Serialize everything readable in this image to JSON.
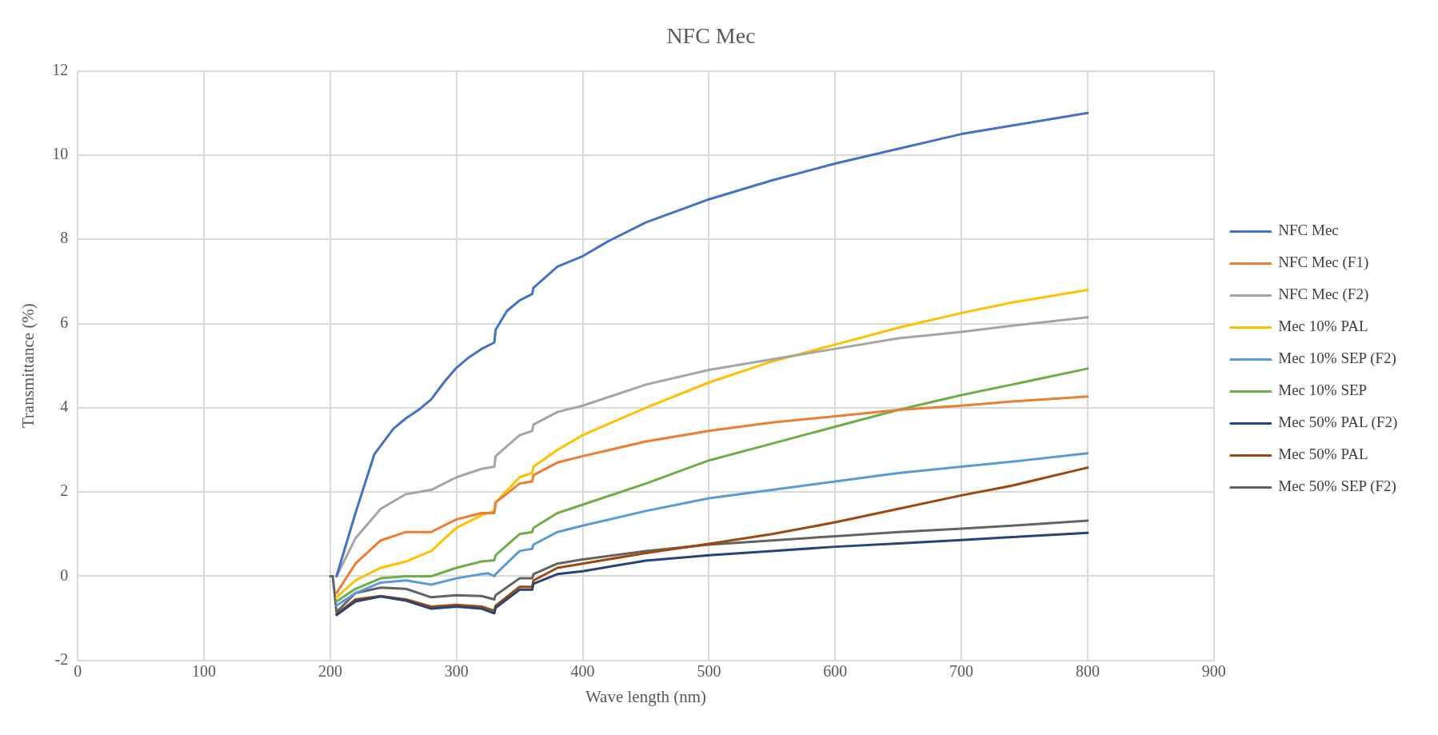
{
  "chart_data": {
    "type": "line",
    "title": "NFC Mec",
    "xlabel": "Wave length (nm)",
    "ylabel": "Transmittance (%)",
    "xlim": [
      0,
      900
    ],
    "xticks": [
      0,
      100,
      200,
      300,
      400,
      500,
      600,
      700,
      800,
      900
    ],
    "ylim": [
      -2,
      12
    ],
    "yticks": [
      -2,
      0,
      2,
      4,
      6,
      8,
      10,
      12
    ],
    "grid": true,
    "legend": "right",
    "marker": "none",
    "line_style": "solid",
    "series": [
      {
        "name": "NFC Mec",
        "color": "#4472c4",
        "x": [
          205,
          220,
          235,
          250,
          260,
          270,
          280,
          290,
          300,
          310,
          320,
          330,
          331,
          340,
          350,
          360,
          361,
          380,
          400,
          420,
          450,
          500,
          550,
          600,
          650,
          700,
          740,
          800
        ],
        "values": [
          0,
          1.5,
          2.9,
          3.5,
          3.75,
          3.95,
          4.2,
          4.6,
          4.95,
          5.2,
          5.4,
          5.55,
          5.85,
          6.3,
          6.55,
          6.7,
          6.85,
          7.35,
          7.6,
          7.95,
          8.4,
          8.95,
          9.4,
          9.8,
          10.15,
          10.5,
          10.7,
          11.0
        ]
      },
      {
        "name": "NFC Mec (F1)",
        "color": "#ed7d31",
        "x": [
          205,
          220,
          240,
          260,
          280,
          300,
          320,
          330,
          331,
          350,
          360,
          361,
          380,
          400,
          450,
          500,
          550,
          600,
          650,
          700,
          740,
          800
        ],
        "values": [
          -0.4,
          0.3,
          0.85,
          1.05,
          1.05,
          1.35,
          1.5,
          1.5,
          1.75,
          2.2,
          2.25,
          2.4,
          2.7,
          2.85,
          3.2,
          3.45,
          3.65,
          3.8,
          3.95,
          4.05,
          4.15,
          4.27
        ]
      },
      {
        "name": "NFC Mec (F2)",
        "color": "#a5a5a5",
        "x": [
          205,
          220,
          240,
          260,
          280,
          300,
          320,
          330,
          331,
          350,
          360,
          361,
          380,
          400,
          450,
          500,
          550,
          600,
          650,
          700,
          740,
          800
        ],
        "values": [
          0,
          0.9,
          1.6,
          1.95,
          2.05,
          2.35,
          2.55,
          2.6,
          2.85,
          3.35,
          3.45,
          3.6,
          3.9,
          4.05,
          4.55,
          4.9,
          5.15,
          5.4,
          5.65,
          5.8,
          5.95,
          6.15
        ]
      },
      {
        "name": "Mec 10% PAL",
        "color": "#ffc000",
        "x": [
          205,
          220,
          240,
          260,
          280,
          300,
          320,
          330,
          331,
          350,
          360,
          361,
          380,
          400,
          450,
          500,
          550,
          600,
          650,
          700,
          740,
          800
        ],
        "values": [
          -0.5,
          -0.1,
          0.2,
          0.35,
          0.6,
          1.15,
          1.45,
          1.55,
          1.75,
          2.35,
          2.45,
          2.6,
          3.0,
          3.35,
          4.0,
          4.6,
          5.1,
          5.5,
          5.9,
          6.25,
          6.5,
          6.8
        ]
      },
      {
        "name": "Mec 10% SEP (F2)",
        "color": "#5b9bd5",
        "x": [
          205,
          220,
          240,
          260,
          280,
          300,
          320,
          325,
          330,
          331,
          350,
          360,
          361,
          380,
          400,
          450,
          500,
          550,
          600,
          650,
          700,
          740,
          800
        ],
        "values": [
          -0.7,
          -0.4,
          -0.15,
          -0.1,
          -0.2,
          -0.05,
          0.05,
          0.07,
          0,
          0.05,
          0.6,
          0.65,
          0.75,
          1.05,
          1.2,
          1.55,
          1.85,
          2.05,
          2.25,
          2.45,
          2.6,
          2.72,
          2.92
        ]
      },
      {
        "name": "Mec 10% SEP",
        "color": "#70ad47",
        "x": [
          205,
          220,
          240,
          260,
          280,
          300,
          320,
          330,
          331,
          350,
          360,
          361,
          380,
          400,
          450,
          500,
          550,
          600,
          650,
          700,
          740,
          800
        ],
        "values": [
          -0.6,
          -0.3,
          -0.05,
          0,
          0,
          0.2,
          0.35,
          0.38,
          0.5,
          1.0,
          1.05,
          1.15,
          1.5,
          1.7,
          2.2,
          2.75,
          3.15,
          3.55,
          3.95,
          4.3,
          4.55,
          4.93
        ]
      },
      {
        "name": "Mec 50% PAL (F2)",
        "color": "#264478",
        "x": [
          205,
          220,
          240,
          260,
          280,
          300,
          320,
          330,
          331,
          350,
          360,
          361,
          380,
          400,
          450,
          500,
          550,
          600,
          650,
          700,
          740,
          800
        ],
        "values": [
          -0.92,
          -0.6,
          -0.48,
          -0.58,
          -0.77,
          -0.72,
          -0.77,
          -0.88,
          -0.75,
          -0.32,
          -0.32,
          -0.18,
          0.05,
          0.12,
          0.37,
          0.5,
          0.6,
          0.7,
          0.78,
          0.86,
          0.93,
          1.03
        ]
      },
      {
        "name": "Mec 50% PAL",
        "color": "#9e480e",
        "x": [
          205,
          220,
          240,
          260,
          280,
          300,
          320,
          330,
          331,
          350,
          360,
          361,
          380,
          400,
          450,
          500,
          550,
          600,
          650,
          700,
          740,
          800
        ],
        "values": [
          -0.9,
          -0.55,
          -0.47,
          -0.55,
          -0.72,
          -0.68,
          -0.72,
          -0.82,
          -0.7,
          -0.25,
          -0.25,
          -0.1,
          0.2,
          0.3,
          0.55,
          0.77,
          1.0,
          1.28,
          1.6,
          1.92,
          2.15,
          2.58
        ]
      },
      {
        "name": "Mec 50% SEP (F2)",
        "color": "#636363",
        "x": [
          200,
          202,
          205,
          220,
          240,
          260,
          280,
          300,
          320,
          330,
          331,
          350,
          360,
          361,
          380,
          400,
          450,
          500,
          550,
          600,
          650,
          700,
          740,
          800
        ],
        "values": [
          0,
          0,
          -0.85,
          -0.4,
          -0.27,
          -0.3,
          -0.5,
          -0.45,
          -0.47,
          -0.55,
          -0.45,
          -0.05,
          -0.05,
          0.05,
          0.3,
          0.4,
          0.6,
          0.75,
          0.85,
          0.95,
          1.05,
          1.13,
          1.2,
          1.32
        ]
      }
    ]
  }
}
